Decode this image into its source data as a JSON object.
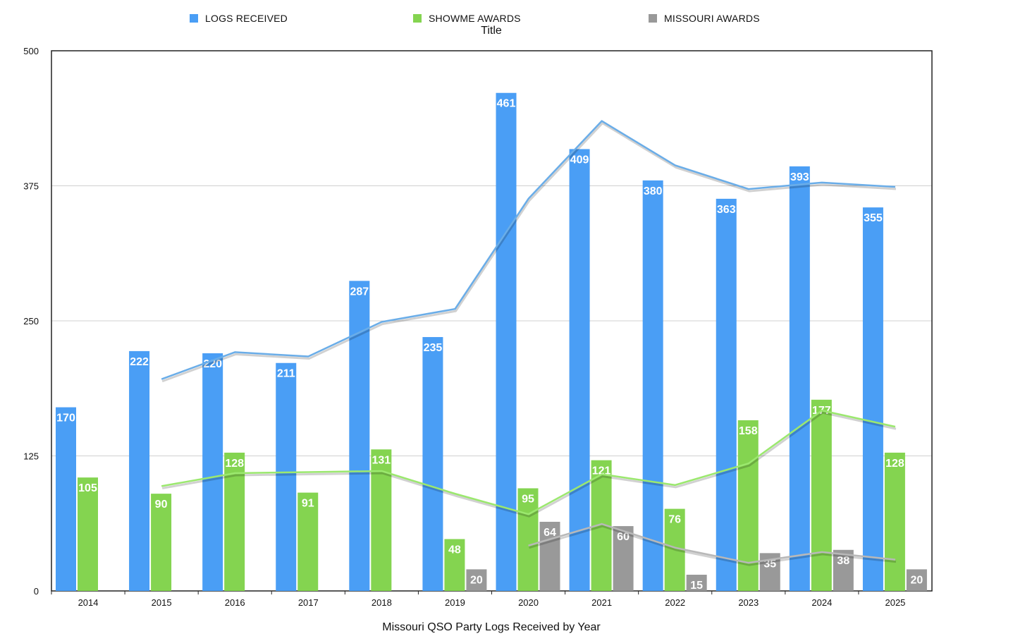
{
  "chart_data": {
    "type": "bar",
    "title": "Title",
    "xlabel": "Missouri QSO Party Logs Received by Year",
    "ylabel": "",
    "ylim": [
      0,
      500
    ],
    "yticks": [
      0,
      125,
      250,
      375,
      500
    ],
    "grid": true,
    "legend_position": "top",
    "categories": [
      "2014",
      "2015",
      "2016",
      "2017",
      "2018",
      "2019",
      "2020",
      "2021",
      "2022",
      "2023",
      "2024",
      "2025"
    ],
    "series": [
      {
        "name": "LOGS RECEIVED",
        "color": "#4a9ef5",
        "values": [
          170,
          222,
          220,
          211,
          287,
          235,
          461,
          409,
          380,
          363,
          393,
          355
        ]
      },
      {
        "name": "SHOWME AWARDS",
        "color": "#84d450",
        "values": [
          105,
          90,
          128,
          91,
          131,
          48,
          95,
          121,
          76,
          158,
          177,
          128
        ]
      },
      {
        "name": "MISSOURI AWARDS",
        "color": "#999999",
        "values": [
          null,
          null,
          null,
          null,
          null,
          20,
          64,
          60,
          15,
          35,
          38,
          20
        ]
      }
    ],
    "trendlines": [
      {
        "series": "LOGS RECEIVED",
        "color": "#6aade8",
        "values": [
          null,
          196,
          221,
          217,
          249,
          261,
          363,
          435,
          394,
          372,
          378,
          374
        ]
      },
      {
        "series": "SHOWME AWARDS",
        "color": "#9be86e",
        "values": [
          null,
          97,
          109,
          110,
          111,
          90,
          71,
          108,
          98,
          118,
          167,
          152
        ]
      },
      {
        "series": "MISSOURI AWARDS",
        "color": "#b8b8b8",
        "values": [
          null,
          null,
          null,
          null,
          null,
          null,
          42,
          62,
          40,
          26,
          36,
          29
        ]
      }
    ]
  }
}
